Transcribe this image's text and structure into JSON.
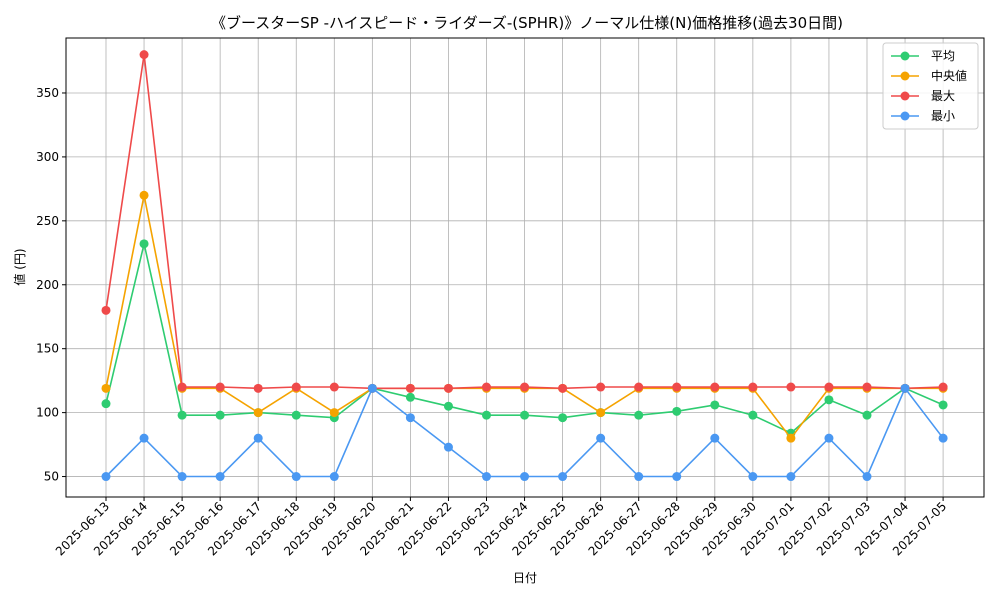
{
  "chart_data": {
    "type": "line",
    "title": "《ブースターSP -ハイスピード・ライダーズ-(SPHR)》ノーマル仕様(N)価格推移(過去30日間)",
    "xlabel": "日付",
    "ylabel": "値 (円)",
    "categories": [
      "2025-06-13",
      "2025-06-14",
      "2025-06-15",
      "2025-06-16",
      "2025-06-17",
      "2025-06-18",
      "2025-06-19",
      "2025-06-20",
      "2025-06-21",
      "2025-06-22",
      "2025-06-23",
      "2025-06-24",
      "2025-06-25",
      "2025-06-26",
      "2025-06-27",
      "2025-06-28",
      "2025-06-29",
      "2025-06-30",
      "2025-07-01",
      "2025-07-02",
      "2025-07-03",
      "2025-07-04",
      "2025-07-05"
    ],
    "yticks": [
      50,
      100,
      150,
      200,
      250,
      300,
      350
    ],
    "ylim": [
      34,
      393
    ],
    "grid": true,
    "legend_position": "top-right",
    "series": [
      {
        "name": "平均",
        "color": "#2ecc71",
        "values": [
          107,
          232,
          98,
          98,
          100,
          98,
          96,
          119,
          112,
          105,
          98,
          98,
          96,
          100,
          98,
          101,
          106,
          98,
          84,
          110,
          98,
          119,
          106
        ]
      },
      {
        "name": "中央値",
        "color": "#f5a300",
        "values": [
          119,
          270,
          119,
          119,
          100,
          119,
          100,
          119,
          119,
          119,
          119,
          119,
          119,
          100,
          119,
          119,
          119,
          119,
          80,
          119,
          119,
          119,
          119
        ]
      },
      {
        "name": "最大",
        "color": "#ef4a4a",
        "values": [
          180,
          380,
          120,
          120,
          119,
          120,
          120,
          119,
          119,
          119,
          120,
          120,
          119,
          120,
          120,
          120,
          120,
          120,
          120,
          120,
          120,
          119,
          120
        ]
      },
      {
        "name": "最小",
        "color": "#4a98f2",
        "values": [
          50,
          80,
          50,
          50,
          80,
          50,
          50,
          119,
          96,
          73,
          50,
          50,
          50,
          80,
          50,
          50,
          80,
          50,
          50,
          80,
          50,
          119,
          80
        ]
      }
    ]
  }
}
